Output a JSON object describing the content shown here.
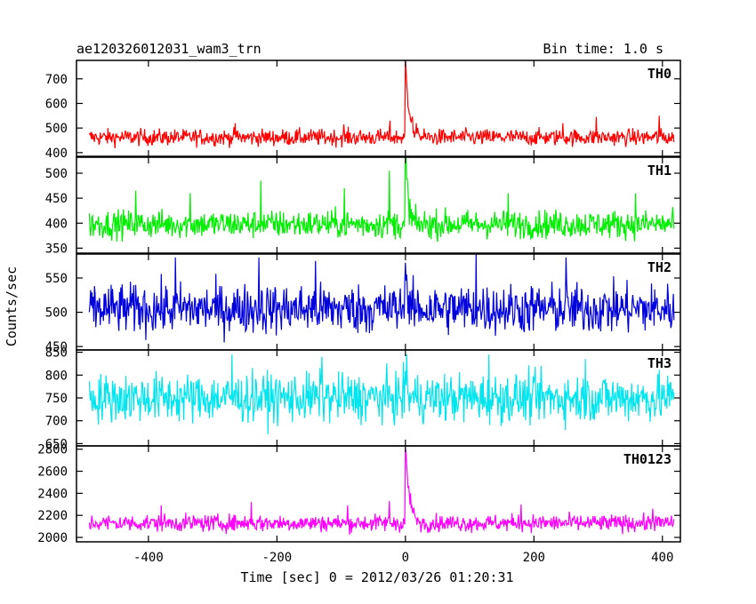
{
  "header": {
    "title": "ae120326012031_wam3_trn",
    "bin_time": "Bin time: 1.0 s"
  },
  "chart_data": {
    "type": "line",
    "xlabel": "Time [sec] 0 = 2012/03/26 01:20:31",
    "ylabel": "Counts/sec",
    "xlim": [
      -512,
      428
    ],
    "x_ticks": [
      -400,
      -200,
      0,
      200,
      400
    ],
    "x_range": [
      -492,
      418
    ],
    "panels": [
      {
        "name": "TH0",
        "color": "#ff0000",
        "ylim": [
          385,
          775
        ],
        "y_ticks": [
          400,
          500,
          600,
          700
        ],
        "baseline": 462,
        "noise": 24,
        "peak": 765,
        "peak_width": 6,
        "spikes": [
          [
            -265,
            520
          ],
          [
            -96,
            515
          ],
          [
            -24,
            530
          ],
          [
            245,
            520
          ],
          [
            297,
            545
          ],
          [
            395,
            550
          ]
        ]
      },
      {
        "name": "TH1",
        "color": "#00ee00",
        "ylim": [
          340,
          532
        ],
        "y_ticks": [
          350,
          400,
          450,
          500
        ],
        "baseline": 398,
        "noise": 20,
        "peak": 545,
        "peak_width": 4,
        "spikes": [
          [
            -420,
            465
          ],
          [
            -335,
            460
          ],
          [
            -225,
            485
          ],
          [
            -95,
            470
          ],
          [
            -25,
            505
          ],
          [
            160,
            460
          ],
          [
            358,
            460
          ]
        ]
      },
      {
        "name": "TH2",
        "color": "#0000dd",
        "ylim": [
          445,
          585
        ],
        "y_ticks": [
          450,
          500,
          550
        ],
        "baseline": 505,
        "noise": 26,
        "peak": 580,
        "peak_width": 3,
        "spikes": [
          [
            -358,
            580
          ],
          [
            -228,
            580
          ],
          [
            -140,
            575
          ],
          [
            110,
            585
          ],
          [
            250,
            580
          ]
        ]
      },
      {
        "name": "TH3",
        "color": "#00e5ee",
        "ylim": [
          645,
          855
        ],
        "y_ticks": [
          650,
          700,
          750,
          800,
          850
        ],
        "baseline": 750,
        "noise": 38,
        "peak": 845,
        "peak_width": 2,
        "spikes": [
          [
            -270,
            845
          ],
          [
            -130,
            840
          ],
          [
            130,
            845
          ],
          [
            280,
            835
          ]
        ]
      },
      {
        "name": "TH0123",
        "color": "#ff00ff",
        "ylim": [
          1960,
          2830
        ],
        "y_ticks": [
          2000,
          2200,
          2400,
          2600,
          2800
        ],
        "baseline": 2130,
        "noise": 55,
        "peak": 2810,
        "peak_width": 6,
        "spikes": [
          [
            -380,
            2290
          ],
          [
            -240,
            2320
          ],
          [
            -90,
            2290
          ],
          [
            -25,
            2330
          ],
          [
            180,
            2300
          ],
          [
            385,
            2260
          ]
        ]
      }
    ]
  }
}
